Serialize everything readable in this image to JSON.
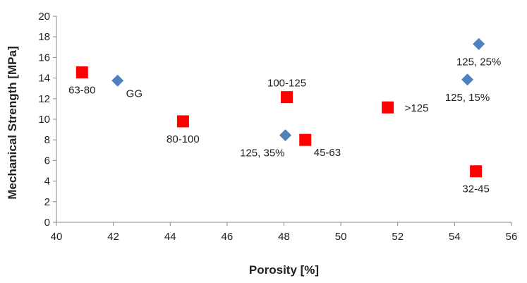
{
  "chart_data": {
    "type": "scatter",
    "title": "",
    "xlabel": "Porosity [%]",
    "ylabel": "Mechanical Strength [MPa]",
    "xlim": [
      40,
      56
    ],
    "ylim": [
      0,
      20
    ],
    "x_ticks": [
      40,
      42,
      44,
      46,
      48,
      50,
      52,
      54,
      56
    ],
    "y_ticks": [
      0,
      2,
      4,
      6,
      8,
      10,
      12,
      14,
      16,
      18,
      20
    ],
    "grid": false,
    "legend": "none",
    "series": [
      {
        "marker": "diamond",
        "color": "#4F81BD",
        "points": [
          {
            "x": 42.15,
            "y": 13.75,
            "label": "GG",
            "label_anchor": "below-right"
          },
          {
            "x": 48.05,
            "y": 8.45,
            "label": "125, 35%",
            "label_anchor": "below-left"
          },
          {
            "x": 54.45,
            "y": 13.85,
            "label": "125, 15%",
            "label_anchor": "below"
          },
          {
            "x": 54.85,
            "y": 17.3,
            "label": "125, 25%",
            "label_anchor": "below"
          }
        ]
      },
      {
        "marker": "square",
        "color": "#FF0000",
        "points": [
          {
            "x": 40.9,
            "y": 14.55,
            "label": "63-80",
            "label_anchor": "below"
          },
          {
            "x": 44.45,
            "y": 9.8,
            "label": "80-100",
            "label_anchor": "below"
          },
          {
            "x": 48.1,
            "y": 12.15,
            "label": "100-125",
            "label_anchor": "above"
          },
          {
            "x": 48.75,
            "y": 8.0,
            "label": "45-63",
            "label_anchor": "below-right"
          },
          {
            "x": 51.65,
            "y": 11.15,
            "label": ">125",
            "label_anchor": "right"
          },
          {
            "x": 54.75,
            "y": 4.95,
            "label": "32-45",
            "label_anchor": "below"
          }
        ]
      }
    ]
  }
}
